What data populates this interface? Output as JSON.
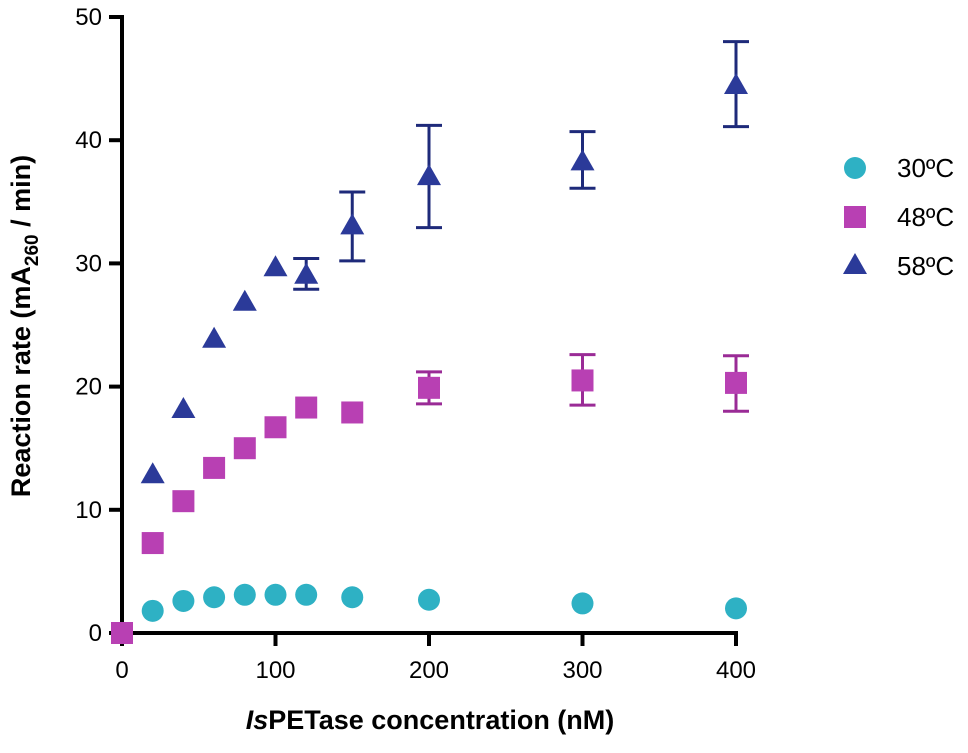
{
  "chart_data": {
    "type": "scatter",
    "title": "",
    "xlabel": {
      "italic": "Is",
      "rest": "PETase concentration (nM)"
    },
    "ylabel": {
      "pre": "Reaction rate (mA",
      "sub": "260",
      "post": " / min)"
    },
    "xlim": [
      0,
      400
    ],
    "ylim": [
      0,
      50
    ],
    "xticks": [
      0,
      100,
      200,
      300,
      400
    ],
    "yticks": [
      0,
      10,
      20,
      30,
      40,
      50
    ],
    "grid": false,
    "legend_position": "right",
    "series": [
      {
        "name": "30ºC",
        "marker": "circle",
        "color": "#2EB1C4",
        "errorColor": "#2EB1C4",
        "points": [
          {
            "x": 0,
            "y": 0.0
          },
          {
            "x": 20,
            "y": 1.8
          },
          {
            "x": 40,
            "y": 2.6
          },
          {
            "x": 60,
            "y": 2.9
          },
          {
            "x": 80,
            "y": 3.1
          },
          {
            "x": 100,
            "y": 3.1
          },
          {
            "x": 120,
            "y": 3.1
          },
          {
            "x": 150,
            "y": 2.9
          },
          {
            "x": 200,
            "y": 2.7
          },
          {
            "x": 300,
            "y": 2.4
          },
          {
            "x": 400,
            "y": 2.0
          }
        ]
      },
      {
        "name": "48ºC",
        "marker": "square",
        "color": "#B840B3",
        "errorColor": "#9A2B96",
        "points": [
          {
            "x": 0,
            "y": 0.0
          },
          {
            "x": 20,
            "y": 7.3
          },
          {
            "x": 40,
            "y": 10.7
          },
          {
            "x": 60,
            "y": 13.4
          },
          {
            "x": 80,
            "y": 15.0
          },
          {
            "x": 100,
            "y": 16.7
          },
          {
            "x": 120,
            "y": 18.3
          },
          {
            "x": 150,
            "y": 17.9
          },
          {
            "x": 200,
            "y": 19.9,
            "err": [
              18.6,
              21.2
            ]
          },
          {
            "x": 300,
            "y": 20.5,
            "err": [
              18.5,
              22.6
            ]
          },
          {
            "x": 400,
            "y": 20.3,
            "err": [
              18.0,
              22.5
            ]
          }
        ]
      },
      {
        "name": "58ºC",
        "marker": "triangle",
        "color": "#2B3A99",
        "errorColor": "#1E2A7A",
        "points": [
          {
            "x": 20,
            "y": 12.8
          },
          {
            "x": 40,
            "y": 18.1
          },
          {
            "x": 60,
            "y": 23.8
          },
          {
            "x": 80,
            "y": 26.8
          },
          {
            "x": 100,
            "y": 29.6
          },
          {
            "x": 120,
            "y": 29.0,
            "err": [
              27.9,
              30.4
            ]
          },
          {
            "x": 150,
            "y": 33.0,
            "err": [
              30.2,
              35.8
            ]
          },
          {
            "x": 200,
            "y": 37.0,
            "err": [
              32.9,
              41.2
            ]
          },
          {
            "x": 300,
            "y": 38.2,
            "err": [
              36.1,
              40.7
            ]
          },
          {
            "x": 400,
            "y": 44.4,
            "err": [
              41.1,
              48.0
            ]
          }
        ]
      }
    ]
  }
}
